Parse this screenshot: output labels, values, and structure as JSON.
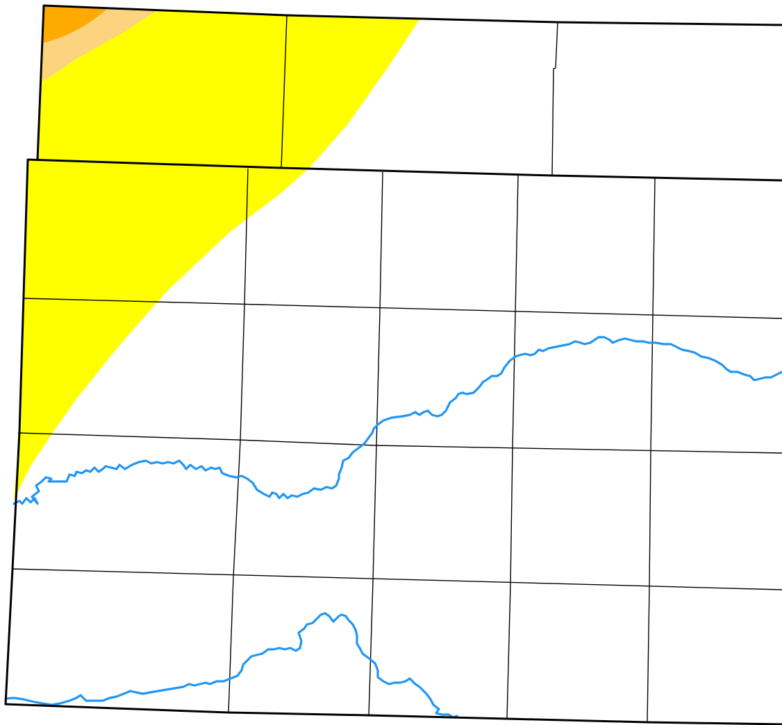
{
  "map": {
    "colors": {
      "background": "#ffffff",
      "abnormally_dry": "#ffff00",
      "moderate_drought": "#fcd37f",
      "severe_drought": "#ffaa00",
      "water": "#2196f3",
      "boundary": "#000000"
    },
    "layers": [
      {
        "id": "drought-d0",
        "icon": "yellow-fill"
      },
      {
        "id": "drought-d1",
        "icon": "light-orange-fill"
      },
      {
        "id": "drought-d2",
        "icon": "orange-fill"
      },
      {
        "id": "county-boundaries",
        "icon": "thin-black-lines"
      },
      {
        "id": "state-boundaries",
        "icon": "thick-black-lines"
      },
      {
        "id": "rivers",
        "icon": "blue-lines"
      }
    ]
  }
}
